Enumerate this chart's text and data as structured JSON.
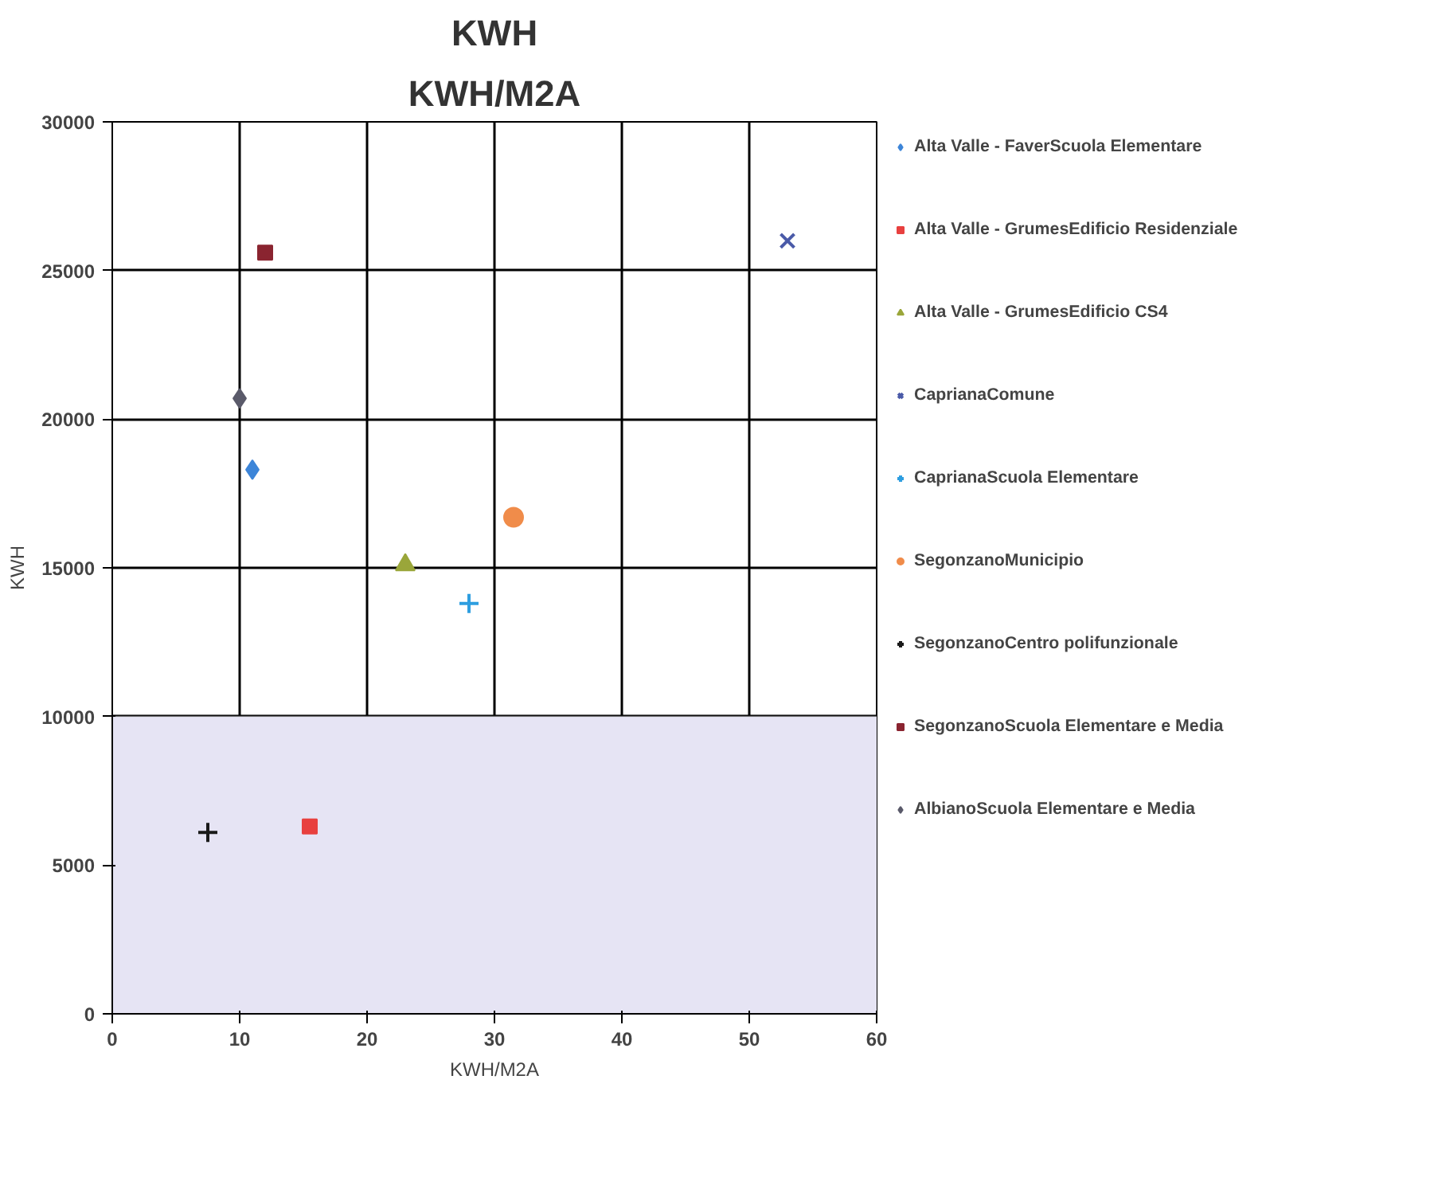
{
  "chart_data": {
    "type": "scatter",
    "title": "KWH",
    "subtitle": "KWH/M2A",
    "xlabel": "KWH/M2A",
    "ylabel": "KWH",
    "xlim": [
      0,
      60
    ],
    "ylim": [
      0,
      30000
    ],
    "xticks": [
      0,
      10,
      20,
      30,
      40,
      50,
      60
    ],
    "yticks": [
      0,
      5000,
      10000,
      15000,
      20000,
      25000,
      30000
    ],
    "grid": true,
    "legend": "right",
    "bands": [
      {
        "axis": "y",
        "from": 0,
        "to": 10000,
        "color": "#e6e4f4"
      }
    ],
    "series": [
      {
        "name": "Alta Valle - FaverScuola Elementare",
        "color": "#3d85d8",
        "marker": "diamond",
        "x": [
          11
        ],
        "values": [
          18300
        ]
      },
      {
        "name": "Alta Valle - GrumesEdificio Residenziale",
        "color": "#e8403f",
        "marker": "square",
        "x": [
          15.5
        ],
        "values": [
          6300
        ]
      },
      {
        "name": "Alta Valle - GrumesEdificio CS4",
        "color": "#9aa63a",
        "marker": "triangle",
        "x": [
          23
        ],
        "values": [
          15100
        ]
      },
      {
        "name": "CaprianaComune",
        "color": "#4a5aa8",
        "marker": "x",
        "x": [
          53
        ],
        "values": [
          26000
        ]
      },
      {
        "name": "CaprianaScuola Elementare",
        "color": "#2e9ee0",
        "marker": "cross",
        "x": [
          28
        ],
        "values": [
          13800
        ]
      },
      {
        "name": "SegonzanoMunicipio",
        "color": "#f08c4a",
        "marker": "circle",
        "x": [
          31.5
        ],
        "values": [
          16700
        ]
      },
      {
        "name": "SegonzanoCentro polifunzionale",
        "color": "#1a1a1a",
        "marker": "cross",
        "x": [
          7.5
        ],
        "values": [
          6100
        ]
      },
      {
        "name": "SegonzanoScuola Elementare e Media",
        "color": "#8a2430",
        "marker": "square",
        "x": [
          12
        ],
        "values": [
          25600
        ]
      },
      {
        "name": "AlbianoScuola Elementare e Media",
        "color": "#5a5a6a",
        "marker": "diamond",
        "x": [
          10
        ],
        "values": [
          20700
        ]
      }
    ]
  }
}
